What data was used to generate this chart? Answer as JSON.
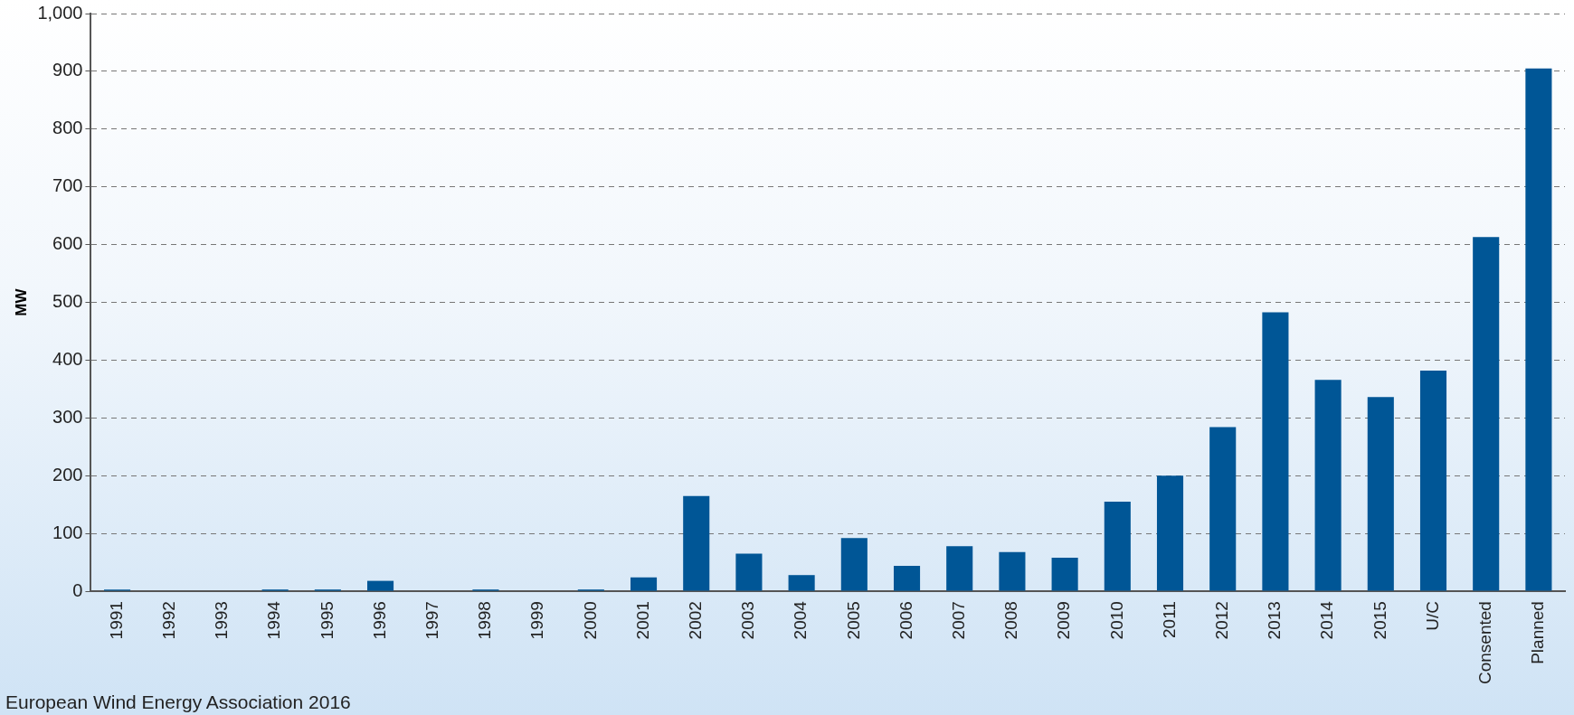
{
  "chart_data": {
    "type": "bar",
    "ylabel": "MW",
    "categories": [
      "1991",
      "1992",
      "1993",
      "1994",
      "1995",
      "1996",
      "1997",
      "1998",
      "1999",
      "2000",
      "2001",
      "2002",
      "2003",
      "2004",
      "2005",
      "2006",
      "2007",
      "2008",
      "2009",
      "2010",
      "2011",
      "2012",
      "2013",
      "2014",
      "2015",
      "U/C",
      "Consented",
      "Planned"
    ],
    "values": [
      3,
      0,
      0,
      3,
      3,
      18,
      0,
      3,
      0,
      3,
      24,
      165,
      65,
      28,
      92,
      44,
      78,
      68,
      58,
      155,
      200,
      284,
      483,
      366,
      336,
      382,
      613,
      905
    ],
    "color": "#005696",
    "ylim": [
      0,
      1000
    ],
    "yticks": [
      0,
      100,
      200,
      300,
      400,
      500,
      600,
      700,
      800,
      900,
      {
        "value": 1000,
        "label": "1,000"
      }
    ],
    "grid": "y",
    "legend": false,
    "annotations": [
      "European Wind Energy Association 2016"
    ]
  }
}
